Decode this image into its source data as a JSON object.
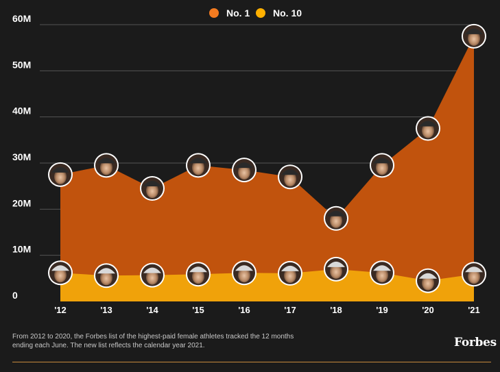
{
  "colors": {
    "background": "#1b1b1b",
    "no1": "#f47b20",
    "no1_area": "#c1530d",
    "no10": "#ffb000",
    "no10_area": "#f0a20a",
    "gridline": "#555555",
    "footer_rule": "#c88a3c"
  },
  "chart_data": {
    "type": "area",
    "title": "",
    "xlabel": "",
    "ylabel": "",
    "x": [
      "'12",
      "'13",
      "'14",
      "'15",
      "'16",
      "'17",
      "'18",
      "'19",
      "'20",
      "'21"
    ],
    "ylim": [
      0,
      60
    ],
    "y_ticks": [
      {
        "value": 0,
        "label": "0"
      },
      {
        "value": 10,
        "label": "10M"
      },
      {
        "value": 20,
        "label": "20M"
      },
      {
        "value": 30,
        "label": "30M"
      },
      {
        "value": 40,
        "label": "40M"
      },
      {
        "value": 50,
        "label": "50M"
      },
      {
        "value": 60,
        "label": "60M"
      }
    ],
    "grid": true,
    "legend_position": "top-center",
    "series": [
      {
        "name": "No. 1",
        "color_key": "no1",
        "values": [
          27.5,
          29.5,
          24.5,
          29.5,
          28.5,
          27.0,
          18.0,
          29.5,
          37.5,
          57.5
        ]
      },
      {
        "name": "No. 10",
        "color_key": "no10",
        "values": [
          6.2,
          5.6,
          5.7,
          5.9,
          6.2,
          6.1,
          7.0,
          6.2,
          4.5,
          5.9
        ]
      }
    ],
    "markers": "athlete headshot circles at each point"
  },
  "footnote": "From 2012 to 2020, the Forbes list of the highest-paid female athletes tracked the 12 months ending each June. The new list reflects the calendar year 2021.",
  "brand": "Forbes"
}
